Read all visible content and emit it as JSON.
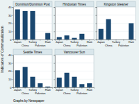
{
  "chart_data": [
    {
      "type": "bar",
      "title": "Dominion/Dominion Post",
      "categories": [
        "Japan",
        "China",
        "Turkey",
        "Pakistan",
        "Haiti"
      ],
      "values": [
        37,
        35,
        35,
        0,
        8
      ],
      "color": "#1a476f",
      "ylim": [
        0,
        40
      ],
      "yticks": [
        0,
        10,
        20,
        30,
        40
      ],
      "grid": true
    },
    {
      "type": "bar",
      "title": "Hindustan Times",
      "categories": [
        "Japan",
        "China",
        "Turkey",
        "Pakistan",
        "Haiti"
      ],
      "values": [
        3,
        5,
        2,
        7,
        0
      ],
      "color": "#1a476f",
      "ylim": [
        0,
        40
      ],
      "yticks": [
        0,
        10,
        20,
        30,
        40
      ],
      "grid": true,
      "tick_labels": "x"
    },
    {
      "type": "bar",
      "title": "Kingston Gleaner",
      "categories": [
        "Japan",
        "China",
        "Turkey",
        "Pakistan",
        "Haiti"
      ],
      "values": [
        13,
        25,
        0,
        0,
        20
      ],
      "color": "#1a476f",
      "ylim": [
        0,
        40
      ],
      "yticks": [
        0,
        10,
        20,
        30,
        40
      ],
      "grid": true,
      "tick_labels": "x"
    },
    {
      "type": "bar",
      "title": "Seattle Times",
      "categories": [
        "Japan",
        "China",
        "Turkey",
        "Pakistan",
        "Haiti"
      ],
      "values": [
        21,
        25,
        13,
        5,
        1
      ],
      "color": "#1a476f",
      "ylim": [
        0,
        40
      ],
      "yticks": [
        0,
        10,
        20,
        30,
        40
      ],
      "grid": true
    },
    {
      "type": "bar",
      "title": "Vancouver Sun",
      "categories": [
        "Japan",
        "China",
        "Turkey",
        "Pakistan",
        "Haiti"
      ],
      "values": [
        12,
        18,
        13,
        4,
        5
      ],
      "color": "#1a476f",
      "ylim": [
        0,
        40
      ],
      "yticks": [
        0,
        10,
        20,
        30,
        40
      ],
      "grid": true,
      "tick_labels": "x"
    }
  ],
  "figure": {
    "ylabel": "Indicators of Communalization",
    "note": "Graphs by Newspaper"
  }
}
